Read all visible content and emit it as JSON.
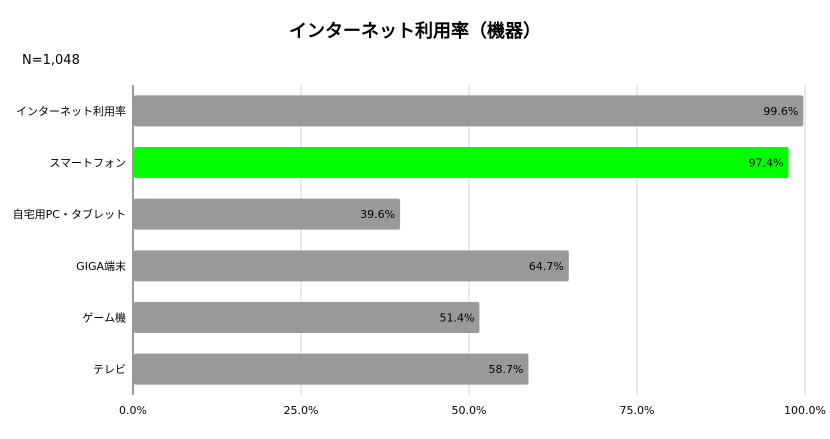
{
  "title": "インターネット利用率（機器）",
  "sample_size_label": "N=1,048",
  "colors": {
    "default_bar": "#999999",
    "highlight_bar": "#00ff00",
    "grid": "#d6d6d6",
    "axis": "#333333"
  },
  "chart_data": {
    "type": "bar",
    "orientation": "horizontal",
    "categories": [
      "インターネット利用率",
      "スマートフォン",
      "自宅用PC・タブレット",
      "GIGA端末",
      "ゲーム機",
      "テレビ"
    ],
    "values": [
      99.6,
      97.4,
      39.6,
      64.7,
      51.4,
      58.7
    ],
    "data_labels": [
      "99.6%",
      "97.4%",
      "39.6%",
      "64.7%",
      "51.4%",
      "58.7%"
    ],
    "highlight_index": 1,
    "xlim": [
      0,
      100
    ],
    "x_ticks": [
      0,
      25,
      50,
      75,
      100
    ],
    "x_tick_labels": [
      "0.0%",
      "25.0%",
      "50.0%",
      "75.0%",
      "100.0%"
    ],
    "title": "インターネット利用率（機器）",
    "xlabel": "",
    "ylabel": "",
    "grid": true,
    "legend": "none"
  }
}
